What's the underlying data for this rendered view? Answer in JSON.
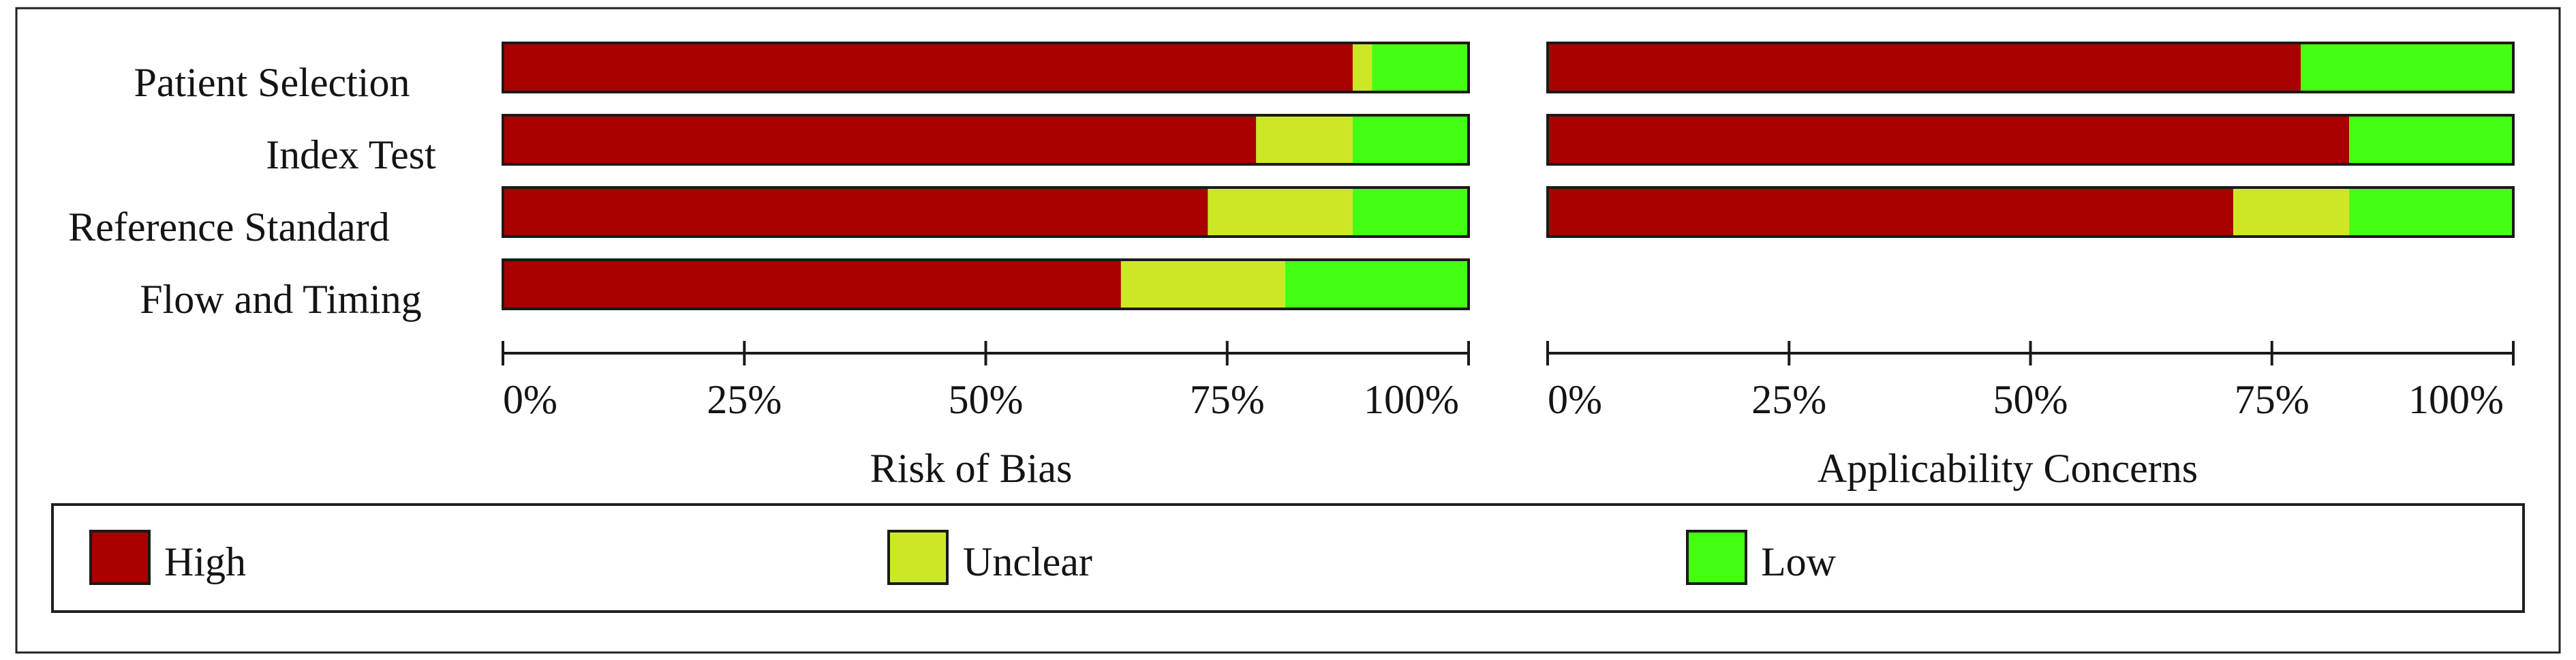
{
  "chart_data": {
    "type": "bar",
    "orientation": "horizontal",
    "stacked": true,
    "categories": [
      "Patient Selection",
      "Index Test",
      "Reference Standard",
      "Flow and Timing"
    ],
    "series": [
      {
        "name": "High",
        "color": "#a90000"
      },
      {
        "name": "Unclear",
        "color": "#cce825"
      },
      {
        "name": "Low",
        "color": "#44ff14"
      }
    ],
    "panels": [
      {
        "title": "Risk of Bias",
        "series_values": [
          [
            88,
            78,
            73,
            64
          ],
          [
            2,
            10,
            15,
            17
          ],
          [
            10,
            12,
            12,
            19
          ]
        ]
      },
      {
        "title": "Applicability Concerns",
        "series_values": [
          [
            78,
            83,
            71,
            null
          ],
          [
            0,
            0,
            12,
            null
          ],
          [
            22,
            17,
            17,
            null
          ]
        ]
      }
    ],
    "xlim": [
      0,
      100
    ],
    "xticks": [
      0,
      25,
      50,
      75,
      100
    ],
    "xtick_labels": [
      "0%",
      "25%",
      "50%",
      "75%",
      "100%"
    ],
    "grid": false,
    "legend_position": "bottom"
  }
}
